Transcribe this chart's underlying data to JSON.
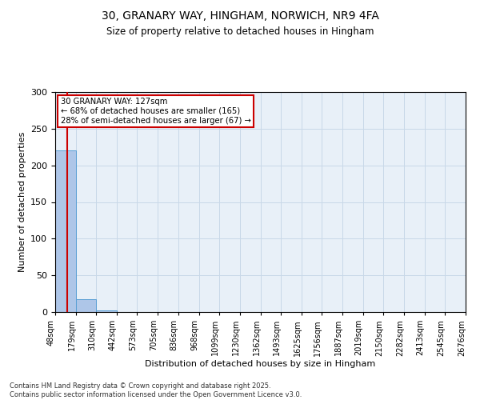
{
  "title1": "30, GRANARY WAY, HINGHAM, NORWICH, NR9 4FA",
  "title2": "Size of property relative to detached houses in Hingham",
  "xlabel": "Distribution of detached houses by size in Hingham",
  "ylabel": "Number of detached properties",
  "bar_color": "#aec6e8",
  "bar_edge_color": "#5a9fd4",
  "bin_edges": [
    48,
    179,
    310,
    442,
    573,
    705,
    836,
    968,
    1099,
    1230,
    1362,
    1493,
    1625,
    1756,
    1887,
    2019,
    2150,
    2282,
    2413,
    2545,
    2676
  ],
  "bar_heights": [
    220,
    18,
    2,
    0,
    0,
    0,
    0,
    0,
    0,
    0,
    0,
    0,
    0,
    0,
    0,
    0,
    0,
    0,
    0,
    0
  ],
  "property_size": 127,
  "red_line_color": "#cc0000",
  "annotation_text": "30 GRANARY WAY: 127sqm\n← 68% of detached houses are smaller (165)\n28% of semi-detached houses are larger (67) →",
  "annotation_box_color": "#cc0000",
  "ylim": [
    0,
    300
  ],
  "yticks": [
    0,
    50,
    100,
    150,
    200,
    250,
    300
  ],
  "grid_color": "#c8d8e8",
  "background_color": "#e8f0f8",
  "footer_text": "Contains HM Land Registry data © Crown copyright and database right 2025.\nContains public sector information licensed under the Open Government Licence v3.0.",
  "tick_label_rotation": 90,
  "tick_fontsize": 7,
  "title1_fontsize": 10,
  "title2_fontsize": 8.5,
  "ylabel_fontsize": 8,
  "xlabel_fontsize": 8
}
